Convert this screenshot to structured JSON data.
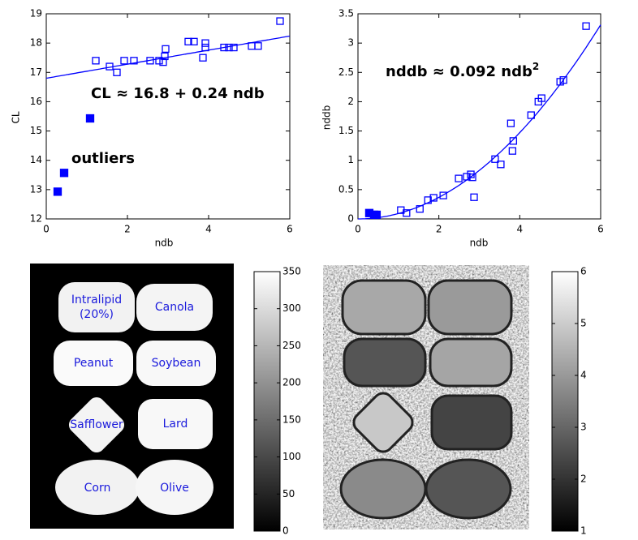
{
  "chart_data": [
    {
      "type": "scatter",
      "x_label": "ndb",
      "y_label": "CL",
      "xlim": [
        0,
        6
      ],
      "ylim": [
        12,
        19
      ],
      "xticks": [
        0,
        2,
        4,
        6
      ],
      "yticks": [
        12,
        13,
        14,
        15,
        16,
        17,
        18,
        19
      ],
      "series": [
        {
          "color": "#0000ff",
          "marker": "hollow",
          "x": [
            1.22,
            1.56,
            1.74,
            1.92,
            2.16,
            2.56,
            2.78,
            2.88,
            2.92,
            2.94,
            3.5,
            3.64,
            3.86,
            3.92,
            3.92,
            4.38,
            4.5,
            4.62,
            5.06,
            5.22,
            5.76
          ],
          "values": [
            17.4,
            17.2,
            17.0,
            17.4,
            17.4,
            17.4,
            17.4,
            17.35,
            17.55,
            17.8,
            18.05,
            18.05,
            17.5,
            18.0,
            17.85,
            17.85,
            17.85,
            17.85,
            17.9,
            17.9,
            18.75
          ]
        },
        {
          "color": "#0000ff",
          "marker": "filled",
          "x": [
            1.08,
            0.44,
            0.28
          ],
          "values": [
            15.43,
            13.57,
            12.93
          ]
        }
      ],
      "fit": {
        "intercept": 16.8,
        "slope": 0.24
      },
      "annotations": [
        {
          "text": "CL ≈ 16.8 + 0.24 ndb"
        },
        {
          "text": "outliers"
        }
      ]
    },
    {
      "type": "scatter",
      "x_label": "ndb",
      "y_label": "nddb",
      "xlim": [
        0,
        6
      ],
      "ylim": [
        0,
        3.5
      ],
      "xticks": [
        0,
        2,
        4,
        6
      ],
      "yticks": [
        0,
        0.5,
        1,
        1.5,
        2,
        2.5,
        3,
        3.5
      ],
      "series": [
        {
          "color": "#0000ff",
          "marker": "hollow",
          "x": [
            1.06,
            1.2,
            1.53,
            1.73,
            1.87,
            2.11,
            2.49,
            2.69,
            2.79,
            2.83,
            2.87,
            3.39,
            3.53,
            3.78,
            3.82,
            3.84,
            4.28,
            4.46,
            4.54,
            5.0,
            5.08,
            5.64
          ],
          "values": [
            0.15,
            0.1,
            0.17,
            0.32,
            0.36,
            0.4,
            0.69,
            0.72,
            0.76,
            0.71,
            0.37,
            1.02,
            0.93,
            1.63,
            1.16,
            1.33,
            1.77,
            2.0,
            2.06,
            2.34,
            2.37,
            3.29
          ]
        },
        {
          "color": "#0000ff",
          "marker": "filled",
          "x": [
            0.28,
            0.4,
            0.46
          ],
          "values": [
            0.1,
            0.07,
            0.07
          ]
        }
      ],
      "fit": {
        "coefficient": 0.092,
        "power": 2
      },
      "annotations": [
        {
          "text": "nddb ≈ 0.092 ndb",
          "superscript": "2"
        }
      ]
    },
    {
      "type": "colorbar",
      "ylim": [
        0,
        350
      ],
      "yticks": [
        0,
        50,
        100,
        150,
        200,
        250,
        300,
        350
      ]
    },
    {
      "type": "colorbar",
      "ylim": [
        1,
        6
      ],
      "yticks": [
        1,
        2,
        3,
        4,
        5,
        6
      ]
    }
  ],
  "image": {
    "labels": [
      [
        "Intralipid",
        "(20%)"
      ],
      [
        "Canola"
      ],
      [
        "Peanut"
      ],
      [
        "Soybean"
      ],
      [
        "Safflower"
      ],
      [
        "Lard"
      ],
      [
        "Corn"
      ],
      [
        "Olive"
      ]
    ]
  }
}
